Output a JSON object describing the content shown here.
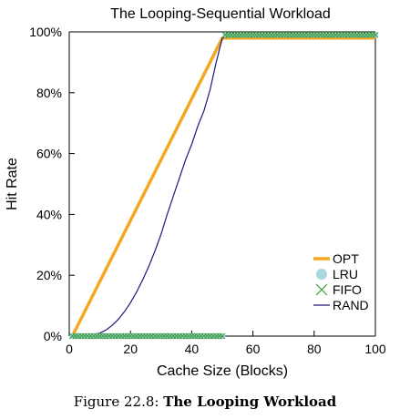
{
  "chart_data": {
    "type": "line",
    "title": "The Looping-Sequential Workload",
    "xlabel": "Cache Size (Blocks)",
    "ylabel": "Hit Rate",
    "xlim": [
      0,
      100
    ],
    "ylim": [
      0,
      100
    ],
    "xticks": [
      0,
      20,
      40,
      60,
      80,
      100
    ],
    "xtick_labels": [
      "0",
      "20",
      "40",
      "60",
      "80",
      "100"
    ],
    "yticks": [
      0,
      20,
      40,
      60,
      80,
      100
    ],
    "ytick_labels": [
      "0%",
      "20%",
      "40%",
      "60%",
      "80%",
      "100%"
    ],
    "legend_position": "bottom-right",
    "series": [
      {
        "name": "OPT",
        "color": "#f5a623",
        "style": "line",
        "x": [
          1,
          50,
          100
        ],
        "y": [
          0,
          98,
          98
        ]
      },
      {
        "name": "LRU",
        "color": "#a8d8e0",
        "style": "circle",
        "x": [
          1,
          2,
          3,
          4,
          5,
          6,
          7,
          8,
          9,
          10,
          11,
          12,
          13,
          14,
          15,
          16,
          17,
          18,
          19,
          20,
          21,
          22,
          23,
          24,
          25,
          26,
          27,
          28,
          29,
          30,
          31,
          32,
          33,
          34,
          35,
          36,
          37,
          38,
          39,
          40,
          41,
          42,
          43,
          44,
          45,
          46,
          47,
          48,
          49,
          50,
          51,
          52,
          53,
          54,
          55,
          56,
          57,
          58,
          59,
          60,
          61,
          62,
          63,
          64,
          65,
          66,
          67,
          68,
          69,
          70,
          71,
          72,
          73,
          74,
          75,
          76,
          77,
          78,
          79,
          80,
          81,
          82,
          83,
          84,
          85,
          86,
          87,
          88,
          89,
          90,
          91,
          92,
          93,
          94,
          95,
          96,
          97,
          98,
          99,
          100
        ],
        "y": [
          0,
          0,
          0,
          0,
          0,
          0,
          0,
          0,
          0,
          0,
          0,
          0,
          0,
          0,
          0,
          0,
          0,
          0,
          0,
          0,
          0,
          0,
          0,
          0,
          0,
          0,
          0,
          0,
          0,
          0,
          0,
          0,
          0,
          0,
          0,
          0,
          0,
          0,
          0,
          0,
          0,
          0,
          0,
          0,
          0,
          0,
          0,
          0,
          0,
          0,
          99,
          99,
          99,
          99,
          99,
          99,
          99,
          99,
          99,
          99,
          99,
          99,
          99,
          99,
          99,
          99,
          99,
          99,
          99,
          99,
          99,
          99,
          99,
          99,
          99,
          99,
          99,
          99,
          99,
          99,
          99,
          99,
          99,
          99,
          99,
          99,
          99,
          99,
          99,
          99,
          99,
          99,
          99,
          99,
          99,
          99,
          99,
          99,
          99,
          99
        ]
      },
      {
        "name": "FIFO",
        "color": "#3a9a3a",
        "style": "x",
        "x": [
          1,
          2,
          3,
          4,
          5,
          6,
          7,
          8,
          9,
          10,
          11,
          12,
          13,
          14,
          15,
          16,
          17,
          18,
          19,
          20,
          21,
          22,
          23,
          24,
          25,
          26,
          27,
          28,
          29,
          30,
          31,
          32,
          33,
          34,
          35,
          36,
          37,
          38,
          39,
          40,
          41,
          42,
          43,
          44,
          45,
          46,
          47,
          48,
          49,
          50,
          51,
          52,
          53,
          54,
          55,
          56,
          57,
          58,
          59,
          60,
          61,
          62,
          63,
          64,
          65,
          66,
          67,
          68,
          69,
          70,
          71,
          72,
          73,
          74,
          75,
          76,
          77,
          78,
          79,
          80,
          81,
          82,
          83,
          84,
          85,
          86,
          87,
          88,
          89,
          90,
          91,
          92,
          93,
          94,
          95,
          96,
          97,
          98,
          99,
          100
        ],
        "y": [
          0,
          0,
          0,
          0,
          0,
          0,
          0,
          0,
          0,
          0,
          0,
          0,
          0,
          0,
          0,
          0,
          0,
          0,
          0,
          0,
          0,
          0,
          0,
          0,
          0,
          0,
          0,
          0,
          0,
          0,
          0,
          0,
          0,
          0,
          0,
          0,
          0,
          0,
          0,
          0,
          0,
          0,
          0,
          0,
          0,
          0,
          0,
          0,
          0,
          0,
          99,
          99,
          99,
          99,
          99,
          99,
          99,
          99,
          99,
          99,
          99,
          99,
          99,
          99,
          99,
          99,
          99,
          99,
          99,
          99,
          99,
          99,
          99,
          99,
          99,
          99,
          99,
          99,
          99,
          99,
          99,
          99,
          99,
          99,
          99,
          99,
          99,
          99,
          99,
          99,
          99,
          99,
          99,
          99,
          99,
          99,
          99,
          99,
          99,
          99
        ]
      },
      {
        "name": "RAND",
        "color": "#1a1a7a",
        "style": "line",
        "x": [
          1,
          5,
          8,
          10,
          12,
          14,
          16,
          18,
          20,
          22,
          24,
          26,
          28,
          30,
          32,
          34,
          36,
          38,
          40,
          42,
          44,
          46,
          48,
          50,
          55,
          60,
          70,
          80,
          90,
          100
        ],
        "y": [
          0,
          0,
          0.5,
          1,
          2,
          3.5,
          5.5,
          8,
          11,
          14.5,
          18.5,
          23,
          28,
          33.5,
          40,
          46,
          52,
          58,
          63,
          69,
          74,
          81,
          90,
          98,
          99,
          99,
          99,
          99,
          99,
          99
        ]
      }
    ]
  },
  "caption": {
    "prefix": "Figure 22.8: ",
    "title": "The Looping Workload"
  }
}
